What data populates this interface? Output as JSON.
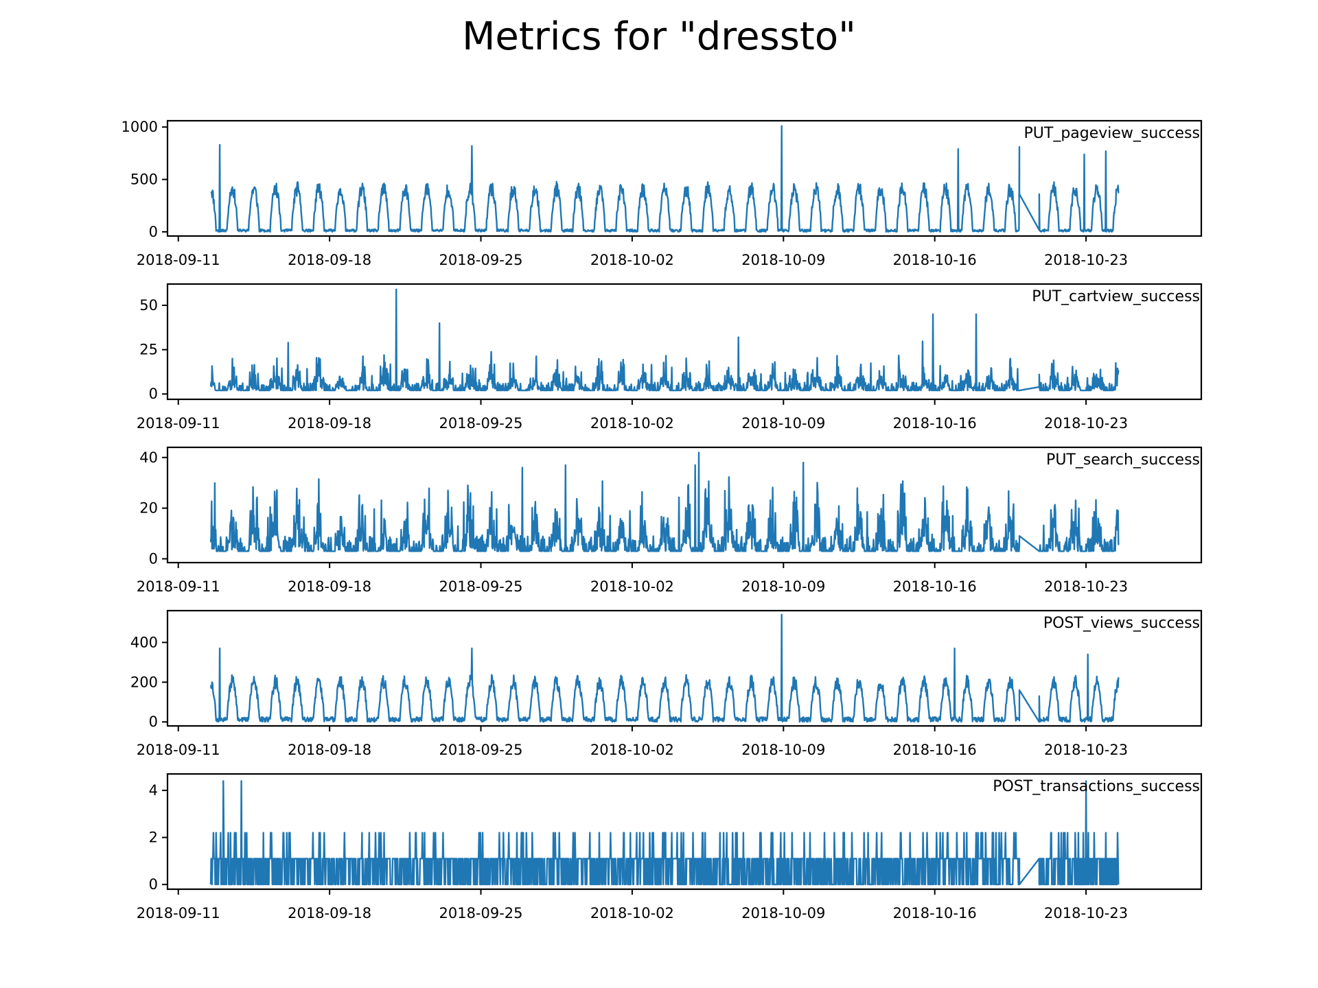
{
  "figure": {
    "title": "Metrics for \"dressto\""
  },
  "colors": {
    "line": "#1f77b4",
    "axis": "#000000",
    "background": "#ffffff"
  },
  "chart_data": [
    {
      "type": "line",
      "label": "PUT_pageview_success",
      "x_range": [
        "2018-09-12T12:00",
        "2018-10-24T12:00"
      ],
      "xlim": [
        "2018-09-10T12:00",
        "2018-10-28T08:00"
      ],
      "xticks": [
        "2018-09-11",
        "2018-09-18",
        "2018-09-25",
        "2018-10-02",
        "2018-10-09",
        "2018-10-16",
        "2018-10-23"
      ],
      "ylim": [
        -40,
        1060
      ],
      "yticks": [
        0,
        500,
        1000
      ],
      "yticklabels": [
        "0",
        "500",
        "1000"
      ],
      "profile": {
        "kind": "daily",
        "base": 30,
        "amp": 380,
        "noise": 110,
        "max_cap": 1000,
        "seed": 11
      },
      "peaks": [
        {
          "date": "2018-09-12T22:00",
          "value": 830
        },
        {
          "date": "2018-09-24T14:00",
          "value": 820
        },
        {
          "date": "2018-10-08T22:00",
          "value": 1010
        },
        {
          "date": "2018-10-17T02:00",
          "value": 790
        },
        {
          "date": "2018-10-19T22:00",
          "value": 810
        },
        {
          "date": "2018-10-22T22:00",
          "value": 740
        },
        {
          "date": "2018-10-23T22:00",
          "value": 770
        }
      ],
      "gaps": [
        {
          "start": "2018-10-19T22:00",
          "end": "2018-10-20T20:00",
          "from": 360,
          "to": 360
        }
      ]
    },
    {
      "type": "line",
      "label": "PUT_cartview_success",
      "x_range": [
        "2018-09-12T12:00",
        "2018-10-24T12:00"
      ],
      "xlim": [
        "2018-09-10T12:00",
        "2018-10-28T08:00"
      ],
      "xticks": [
        "2018-09-11",
        "2018-09-18",
        "2018-09-25",
        "2018-10-02",
        "2018-10-09",
        "2018-10-16",
        "2018-10-23"
      ],
      "ylim": [
        -3,
        62
      ],
      "yticks": [
        0,
        25,
        50
      ],
      "yticklabels": [
        "0",
        "25",
        "50"
      ],
      "profile": {
        "kind": "spiky",
        "base": 2,
        "amp": 9,
        "noise": 9,
        "max_cap": 59,
        "seed": 23
      },
      "peaks": [
        {
          "date": "2018-09-21T02:00",
          "value": 59
        },
        {
          "date": "2018-09-23T02:00",
          "value": 40
        },
        {
          "date": "2018-10-15T22:00",
          "value": 45
        },
        {
          "date": "2018-10-17T22:00",
          "value": 45
        },
        {
          "date": "2018-09-16T02:00",
          "value": 29
        },
        {
          "date": "2018-10-06T22:00",
          "value": 32
        }
      ],
      "gaps": [
        {
          "start": "2018-10-19T22:00",
          "end": "2018-10-20T20:00",
          "from": 2,
          "to": 11
        }
      ]
    },
    {
      "type": "line",
      "label": "PUT_search_success",
      "x_range": [
        "2018-09-12T12:00",
        "2018-10-24T12:00"
      ],
      "xlim": [
        "2018-09-10T12:00",
        "2018-10-28T08:00"
      ],
      "xticks": [
        "2018-09-11",
        "2018-09-18",
        "2018-09-25",
        "2018-10-02",
        "2018-10-09",
        "2018-10-16",
        "2018-10-23"
      ],
      "ylim": [
        -1.5,
        44
      ],
      "yticks": [
        0,
        20,
        40
      ],
      "yticklabels": [
        "0",
        "20",
        "40"
      ],
      "profile": {
        "kind": "spiky",
        "base": 3,
        "amp": 14,
        "noise": 12,
        "max_cap": 42,
        "seed": 37
      },
      "peaks": [
        {
          "date": "2018-10-05T02:00",
          "value": 42
        },
        {
          "date": "2018-10-09T22:00",
          "value": 38
        },
        {
          "date": "2018-10-04T22:00",
          "value": 37
        },
        {
          "date": "2018-09-26T22:00",
          "value": 36
        },
        {
          "date": "2018-09-28T22:00",
          "value": 37
        }
      ],
      "gaps": [
        {
          "start": "2018-10-19T22:00",
          "end": "2018-10-20T20:00",
          "from": 9,
          "to": 3
        }
      ]
    },
    {
      "type": "line",
      "label": "POST_views_success",
      "x_range": [
        "2018-09-12T12:00",
        "2018-10-24T12:00"
      ],
      "xlim": [
        "2018-09-10T12:00",
        "2018-10-28T08:00"
      ],
      "xticks": [
        "2018-09-11",
        "2018-09-18",
        "2018-09-25",
        "2018-10-02",
        "2018-10-09",
        "2018-10-16",
        "2018-10-23"
      ],
      "ylim": [
        -20,
        560
      ],
      "yticks": [
        0,
        200,
        400
      ],
      "yticklabels": [
        "0",
        "200",
        "400"
      ],
      "profile": {
        "kind": "daily",
        "base": 12,
        "amp": 190,
        "noise": 55,
        "max_cap": 540,
        "seed": 53
      },
      "peaks": [
        {
          "date": "2018-10-08T22:00",
          "value": 540
        },
        {
          "date": "2018-09-12T22:00",
          "value": 370
        },
        {
          "date": "2018-09-24T14:00",
          "value": 370
        },
        {
          "date": "2018-10-16T22:00",
          "value": 370
        },
        {
          "date": "2018-10-23T02:00",
          "value": 340
        }
      ],
      "gaps": [
        {
          "start": "2018-10-19T22:00",
          "end": "2018-10-20T20:00",
          "from": 160,
          "to": 130
        }
      ]
    },
    {
      "type": "line",
      "label": "POST_transactions_success",
      "x_range": [
        "2018-09-12T12:00",
        "2018-10-24T12:00"
      ],
      "xlim": [
        "2018-09-10T12:00",
        "2018-10-28T08:00"
      ],
      "xticks": [
        "2018-09-11",
        "2018-09-18",
        "2018-09-25",
        "2018-10-02",
        "2018-10-09",
        "2018-10-16",
        "2018-10-23"
      ],
      "ylim": [
        -0.2,
        4.7
      ],
      "yticks": [
        0,
        2,
        4
      ],
      "yticklabels": [
        "0",
        "2",
        "4"
      ],
      "profile": {
        "kind": "discrete",
        "seed": 71
      },
      "peaks": [
        {
          "date": "2018-09-13T02:00",
          "value": 4.4
        },
        {
          "date": "2018-09-13T22:00",
          "value": 4.4
        },
        {
          "date": "2018-10-23T00:00",
          "value": 4.4
        }
      ],
      "gaps": [
        {
          "start": "2018-10-19T22:00",
          "end": "2018-10-20T20:00",
          "from": 0,
          "to": 0
        }
      ]
    }
  ]
}
